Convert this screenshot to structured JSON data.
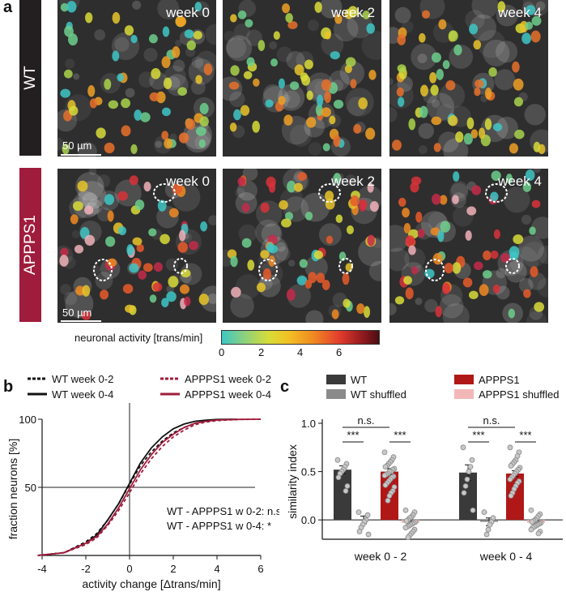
{
  "panel_a": {
    "label": "a",
    "rows": [
      {
        "name": "WT",
        "color": "#231f20",
        "weeks": [
          "week 0",
          "week 2",
          "week 4"
        ],
        "scale": "50 µm"
      },
      {
        "name": "APPPS1",
        "color": "#a01c3c",
        "weeks": [
          "week 0",
          "week 2",
          "week 4"
        ],
        "scale": "50 µm"
      }
    ],
    "colorbar": {
      "title": "neuronal activity [trans/min]",
      "ticks": [
        "0",
        "2",
        "4",
        "6"
      ]
    }
  },
  "panel_b": {
    "label": "b"
  },
  "panel_c": {
    "label": "c"
  },
  "chart_data": [
    {
      "type": "line",
      "id": "b",
      "xlabel": "activity change [Δtrans/min]",
      "ylabel": "fraction neurons [%]",
      "xlim": [
        -4,
        6
      ],
      "ylim": [
        0,
        100
      ],
      "xticks": [
        "-4",
        "-2",
        "0",
        "2",
        "4",
        "6"
      ],
      "yticks": [
        "50",
        "100"
      ],
      "legend": [
        {
          "name": "WT week 0-2",
          "color": "#111111",
          "dash": true
        },
        {
          "name": "APPPS1 week 0-2",
          "color": "#a01c3c",
          "dash": true
        },
        {
          "name": "WT week 0-4",
          "color": "#111111",
          "dash": false
        },
        {
          "name": "APPPS1 week 0-4",
          "color": "#a01c3c",
          "dash": false
        }
      ],
      "series": [
        {
          "name": "WT week 0-2",
          "x": [
            -4.2,
            -3,
            -2,
            -1.5,
            -1,
            -0.5,
            0,
            0.5,
            1,
            1.5,
            2,
            2.5,
            3,
            3.5,
            4,
            5
          ],
          "y": [
            0,
            2,
            10,
            16,
            26,
            38,
            52,
            66,
            76,
            84,
            90,
            94,
            97,
            98.5,
            99.5,
            100
          ]
        },
        {
          "name": "WT week 0-4",
          "x": [
            -4.2,
            -3,
            -2,
            -1.5,
            -1,
            -0.5,
            0,
            0.5,
            1,
            1.5,
            2,
            2.5,
            3,
            3.5,
            4,
            4.8
          ],
          "y": [
            0,
            2,
            9,
            15,
            26,
            38,
            53,
            68,
            79,
            87,
            93,
            96.5,
            98.5,
            99.3,
            99.8,
            100
          ]
        },
        {
          "name": "APPPS1 week 0-2",
          "x": [
            -4.2,
            -3,
            -2,
            -1.5,
            -1,
            -0.5,
            0,
            0.5,
            1,
            1.5,
            2,
            2.5,
            3,
            3.5,
            4,
            5,
            6
          ],
          "y": [
            0,
            2,
            8,
            13,
            22,
            33,
            46,
            60,
            71,
            80,
            87,
            92,
            96,
            98,
            99,
            99.8,
            100
          ]
        },
        {
          "name": "APPPS1 week 0-4",
          "x": [
            -4.2,
            -3,
            -2,
            -1.5,
            -1,
            -0.5,
            0,
            0.5,
            1,
            1.5,
            2,
            2.5,
            3,
            3.5,
            4,
            5,
            6
          ],
          "y": [
            0,
            2,
            9,
            14,
            23,
            35,
            49,
            63,
            74,
            83,
            89,
            94,
            97,
            98.5,
            99.4,
            99.9,
            100
          ]
        }
      ],
      "annotations": [
        "WT - APPPS1 w 0-2: n.s",
        "WT - APPPS1 w 0-4: *"
      ]
    },
    {
      "type": "bar",
      "id": "c",
      "ylabel": "similarity index",
      "ylim": [
        -0.2,
        1.0
      ],
      "yticks": [
        "0.0",
        "0.5",
        "1.0"
      ],
      "categories": [
        "week 0 - 2",
        "week 0 - 4"
      ],
      "legend": [
        {
          "name": "WT",
          "color": "#3a3a3a"
        },
        {
          "name": "WT shuffled",
          "color": "#8a8a8a"
        },
        {
          "name": "APPPS1",
          "color": "#b01818"
        },
        {
          "name": "APPPS1 shuffled",
          "color": "#f2b8b8"
        }
      ],
      "series": [
        {
          "name": "WT",
          "values": [
            0.52,
            0.49
          ],
          "err": [
            0.04,
            0.08
          ]
        },
        {
          "name": "WT shuffled",
          "values": [
            0.0,
            -0.02
          ],
          "err": [
            0.04,
            0.04
          ]
        },
        {
          "name": "APPPS1",
          "values": [
            0.5,
            0.48
          ],
          "err": [
            0.03,
            0.03
          ]
        },
        {
          "name": "APPPS1 shuffled",
          "values": [
            -0.03,
            -0.03
          ],
          "err": [
            0.02,
            0.02
          ]
        }
      ],
      "points": [
        [
          [
            0.62,
            0.58,
            0.55,
            0.52,
            0.5,
            0.48,
            0.44,
            0.35,
            0.3
          ],
          [
            0.08,
            0.05,
            0.0,
            -0.02,
            -0.05,
            -0.08,
            -0.12,
            -0.15
          ],
          [
            0.7,
            0.65,
            0.62,
            0.6,
            0.58,
            0.56,
            0.55,
            0.53,
            0.52,
            0.5,
            0.5,
            0.48,
            0.47,
            0.46,
            0.45,
            0.44,
            0.42,
            0.4,
            0.38,
            0.36,
            0.34,
            0.3,
            0.28,
            0.25,
            0.2
          ],
          [
            0.1,
            0.08,
            0.05,
            0.03,
            0.02,
            0.0,
            -0.01,
            -0.02,
            -0.03,
            -0.04,
            -0.05,
            -0.06,
            -0.07,
            -0.08,
            -0.1,
            -0.12,
            -0.14,
            -0.16,
            -0.18
          ]
        ],
        [
          [
            0.75,
            0.62,
            0.55,
            0.5,
            0.42,
            0.35,
            0.28,
            0.1
          ],
          [
            0.08,
            0.02,
            -0.02,
            -0.05,
            -0.1,
            -0.15
          ],
          [
            0.75,
            0.7,
            0.66,
            0.62,
            0.6,
            0.58,
            0.56,
            0.54,
            0.52,
            0.5,
            0.48,
            0.46,
            0.44,
            0.42,
            0.4,
            0.38,
            0.35,
            0.32,
            0.28,
            0.25
          ],
          [
            0.1,
            0.06,
            0.04,
            0.02,
            0.0,
            -0.01,
            -0.02,
            -0.03,
            -0.04,
            -0.05,
            -0.06,
            -0.07,
            -0.08,
            -0.1,
            -0.12,
            -0.14
          ]
        ]
      ],
      "significance": [
        {
          "group": 0,
          "from": 0,
          "to": 2,
          "label": "n.s."
        },
        {
          "group": 0,
          "from": 0,
          "to": 1,
          "label": "***"
        },
        {
          "group": 0,
          "from": 2,
          "to": 3,
          "label": "***"
        },
        {
          "group": 1,
          "from": 0,
          "to": 2,
          "label": "n.s."
        },
        {
          "group": 1,
          "from": 0,
          "to": 1,
          "label": "***"
        },
        {
          "group": 1,
          "from": 2,
          "to": 3,
          "label": "***"
        }
      ]
    }
  ]
}
